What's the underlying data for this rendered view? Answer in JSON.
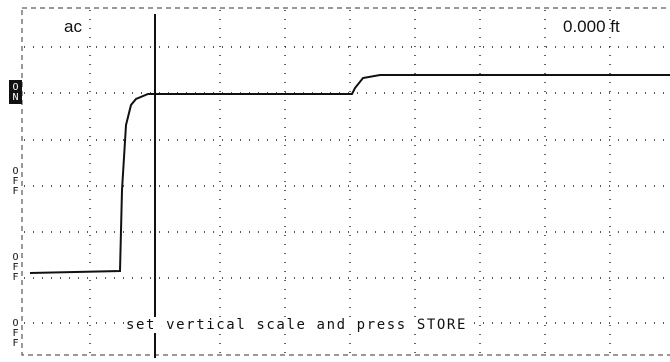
{
  "header": {
    "mode": "ac",
    "distance": "0.000 ft"
  },
  "side_labels": [
    "ON",
    "OFF",
    "OFF",
    "OFF"
  ],
  "message": "set vertical scale and press STORE"
}
